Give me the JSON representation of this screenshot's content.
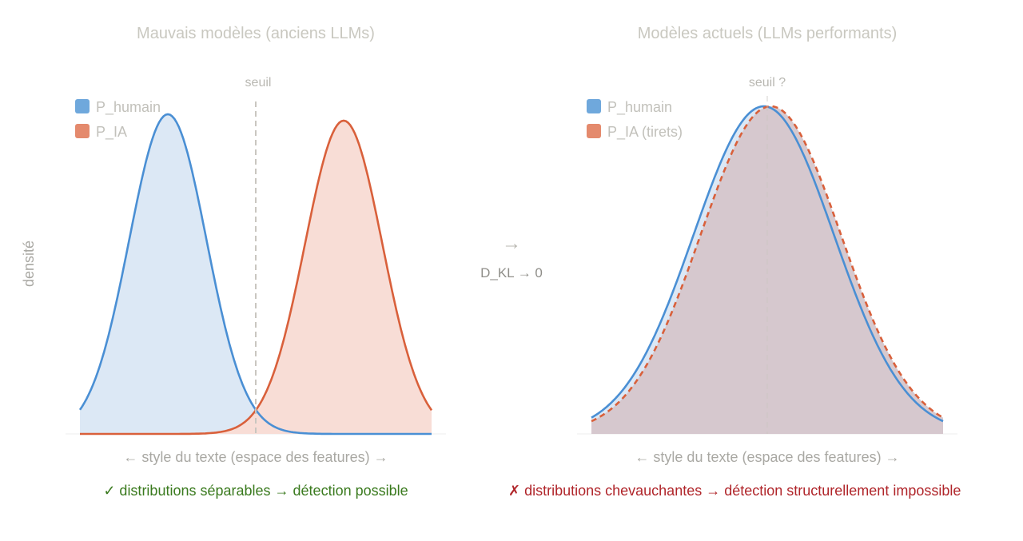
{
  "left_panel": {
    "title": "Mauvais modèles (anciens LLMs)",
    "threshold_label": "seuil",
    "legend_human": "P_humain",
    "legend_ai": "P_IA",
    "xlabel": "← style du texte (espace des features) →",
    "ylabel": "densité",
    "conclusion": "✓ distributions séparables → détection possible"
  },
  "middle": {
    "arrow": "→",
    "label": "D_KL → 0"
  },
  "right_panel": {
    "title": "Modèles actuels (LLMs performants)",
    "threshold_label": "seuil ?",
    "legend_human": "P_humain",
    "legend_ai": "P_IA (tirets)",
    "xlabel": "← style du texte (espace des features) →",
    "conclusion": "✗ distributions chevauchantes → détection structurellement impossible"
  },
  "colors": {
    "human": "#4a8fd4",
    "human_fill": "#dce8f5",
    "ai": "#d9603b",
    "ai_fill": "#f8ddd6",
    "overlap_fill": "#d5c6cb",
    "threshold": "#c9c6c0"
  },
  "chart_data": [
    {
      "type": "area",
      "panel": "left",
      "title": "Mauvais modèles (anciens LLMs)",
      "series": [
        {
          "name": "P_humain",
          "mean": 0.25,
          "sd": 0.11,
          "peak": 1.0
        },
        {
          "name": "P_IA",
          "mean": 0.75,
          "sd": 0.11,
          "peak": 0.98
        }
      ],
      "threshold": 0.5
    },
    {
      "type": "area",
      "panel": "right",
      "title": "Modèles actuels (LLMs performants)",
      "series": [
        {
          "name": "P_humain",
          "mean": 0.49,
          "sd": 0.2,
          "peak": 1.0
        },
        {
          "name": "P_IA (tirets)",
          "mean": 0.51,
          "sd": 0.2,
          "peak": 1.0
        }
      ],
      "threshold": 0.5
    }
  ]
}
